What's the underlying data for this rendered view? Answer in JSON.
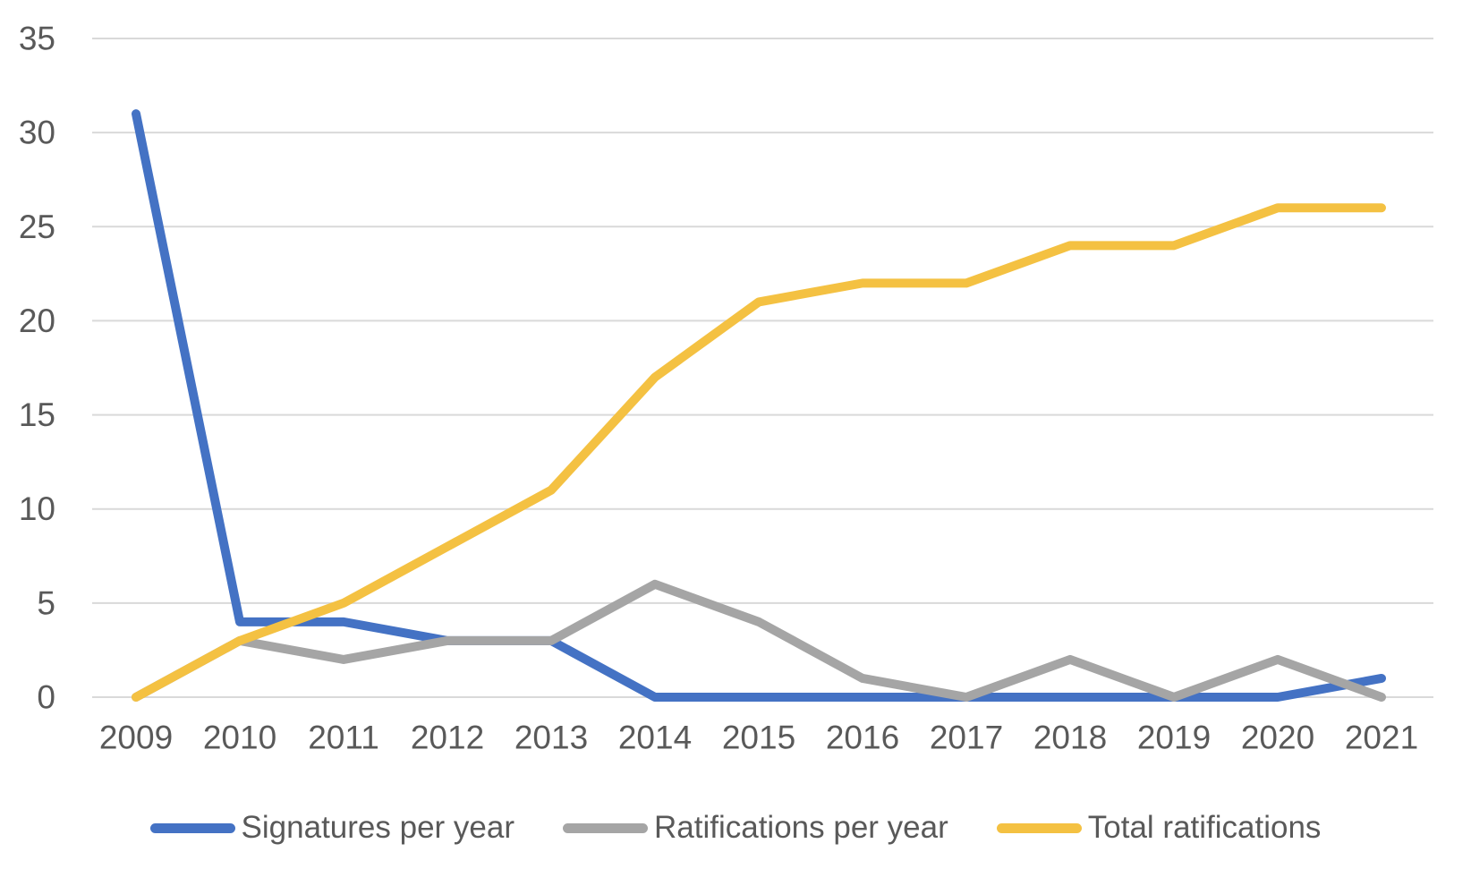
{
  "chart_data": {
    "type": "line",
    "title": "",
    "xlabel": "",
    "ylabel": "",
    "x": [
      "2009",
      "2010",
      "2011",
      "2012",
      "2013",
      "2014",
      "2015",
      "2016",
      "2017",
      "2018",
      "2019",
      "2020",
      "2021"
    ],
    "series": [
      {
        "name": "Signatures per year",
        "color": "#4472C4",
        "values": [
          31,
          4,
          4,
          3,
          3,
          0,
          0,
          0,
          0,
          0,
          0,
          0,
          1
        ]
      },
      {
        "name": "Ratifications per year",
        "color": "#A5A5A5",
        "values": [
          0,
          3,
          2,
          3,
          3,
          6,
          4,
          1,
          0,
          2,
          0,
          2,
          0
        ]
      },
      {
        "name": "Total ratifications",
        "color": "#F4C142",
        "values": [
          0,
          3,
          5,
          8,
          11,
          17,
          21,
          22,
          22,
          24,
          24,
          26,
          26
        ]
      }
    ],
    "ylim": [
      0,
      35
    ],
    "yticks": [
      0,
      5,
      10,
      15,
      20,
      25,
      30,
      35
    ],
    "grid": true,
    "legend_position": "bottom"
  },
  "style": {
    "axis_text_color": "#595959",
    "gridline_color": "#D9D9D9",
    "background": "#FFFFFF",
    "line_width": 10
  }
}
